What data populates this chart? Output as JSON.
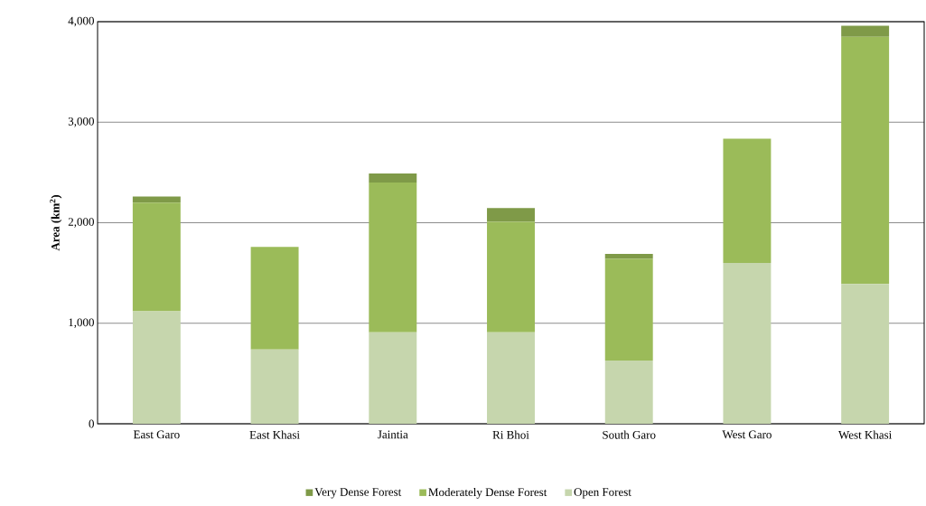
{
  "chart_data": {
    "type": "bar",
    "stacked": true,
    "ylabel": "Area (km$^{2}$)",
    "categories": [
      "East Garo",
      "East Khasi",
      "Jaintia",
      "Ri Bhoi",
      "South Garo",
      "West Garo",
      "West Khasi"
    ],
    "series": [
      {
        "name": "Open Forest",
        "color": "#c6d6ad",
        "values": [
          1120,
          740,
          910,
          910,
          630,
          1600,
          1390
        ]
      },
      {
        "name": "Moderately Dense Forest",
        "color": "#9bbb59",
        "values": [
          1080,
          1020,
          1490,
          1100,
          1010,
          1235,
          2460
        ]
      },
      {
        "name": "Very Dense Forest",
        "color": "#7f9a48",
        "values": [
          60,
          0,
          90,
          135,
          50,
          0,
          110
        ]
      }
    ],
    "ylim": [
      0,
      4000
    ],
    "yticks": [
      0,
      {
        "value": 1000,
        "label": "1,000"
      },
      {
        "value": 2000,
        "label": "2,000"
      },
      {
        "value": 3000,
        "label": "3,000"
      },
      {
        "value": 4000,
        "label": "4,000"
      }
    ],
    "grid": "y",
    "legend": "bottom"
  }
}
